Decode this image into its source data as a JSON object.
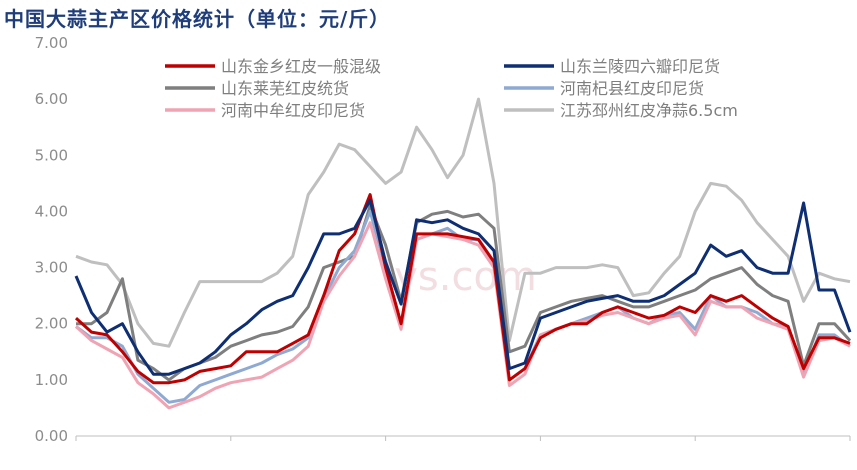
{
  "title": "中国大蒜主产区价格统计（单位：元/斤）",
  "chart_data": {
    "type": "line",
    "title": "中国大蒜主产区价格统计（单位：元/斤）",
    "ylim": [
      0,
      7
    ],
    "yticks": [
      "0.00",
      "1.00",
      "2.00",
      "3.00",
      "4.00",
      "5.00",
      "6.00",
      "7.00"
    ],
    "x": [
      0,
      1,
      2,
      3,
      4,
      5,
      6,
      7,
      8,
      9,
      10,
      11,
      12,
      13,
      14,
      15,
      16,
      17,
      18,
      19,
      20,
      21,
      22,
      23,
      24,
      25,
      26,
      27,
      28,
      29,
      30,
      31,
      32,
      33,
      34,
      35,
      36,
      37,
      38,
      39,
      40,
      41,
      42,
      43,
      44,
      45,
      46,
      47,
      48,
      49,
      50
    ],
    "xlim": [
      0,
      50
    ],
    "grid": false,
    "legend_position": "top",
    "series": [
      {
        "name": "山东金乡红皮一般混级",
        "color": "#c00000",
        "width": 3,
        "values": [
          2.1,
          1.85,
          1.8,
          1.5,
          1.15,
          0.95,
          0.95,
          1.0,
          1.15,
          1.2,
          1.25,
          1.5,
          1.5,
          1.5,
          1.65,
          1.8,
          2.5,
          3.3,
          3.6,
          4.3,
          3.0,
          2.0,
          3.6,
          3.6,
          3.6,
          3.55,
          3.5,
          3.1,
          1.0,
          1.2,
          1.75,
          1.9,
          2.0,
          2.0,
          2.2,
          2.3,
          2.2,
          2.1,
          2.15,
          2.3,
          2.2,
          2.5,
          2.4,
          2.5,
          2.3,
          2.1,
          1.95,
          1.2,
          1.75,
          1.75,
          1.65
        ]
      },
      {
        "name": "山东兰陵四六瓣印尼货",
        "color": "#0e2f73",
        "width": 3,
        "values": [
          2.85,
          2.2,
          1.85,
          2.0,
          1.5,
          1.1,
          1.1,
          1.2,
          1.3,
          1.5,
          1.8,
          2.0,
          2.25,
          2.4,
          2.5,
          3.0,
          3.6,
          3.6,
          3.7,
          4.2,
          3.1,
          2.35,
          3.85,
          3.8,
          3.85,
          3.7,
          3.6,
          3.3,
          1.2,
          1.3,
          2.1,
          2.2,
          2.3,
          2.4,
          2.45,
          2.5,
          2.4,
          2.4,
          2.5,
          2.7,
          2.9,
          3.4,
          3.2,
          3.3,
          3.0,
          2.9,
          2.9,
          4.15,
          2.6,
          2.6,
          1.85
        ]
      },
      {
        "name": "山东莱芜红皮统货",
        "color": "#7f7f7f",
        "width": 3,
        "values": [
          2.0,
          2.0,
          2.2,
          2.8,
          1.35,
          1.2,
          1.0,
          1.2,
          1.3,
          1.4,
          1.6,
          1.7,
          1.8,
          1.85,
          1.95,
          2.3,
          3.0,
          3.1,
          3.2,
          4.1,
          3.4,
          2.4,
          3.8,
          3.95,
          4.0,
          3.9,
          3.95,
          3.7,
          1.5,
          1.6,
          2.2,
          2.3,
          2.4,
          2.45,
          2.5,
          2.4,
          2.3,
          2.3,
          2.4,
          2.5,
          2.6,
          2.8,
          2.9,
          3.0,
          2.7,
          2.5,
          2.4,
          1.25,
          2.0,
          2.0,
          1.7
        ]
      },
      {
        "name": "河南杞县红皮印尼货",
        "color": "#8eaad2",
        "width": 3,
        "values": [
          1.95,
          1.75,
          1.75,
          1.6,
          1.1,
          0.85,
          0.6,
          0.65,
          0.9,
          1.0,
          1.1,
          1.2,
          1.3,
          1.45,
          1.55,
          1.75,
          2.45,
          3.0,
          3.3,
          4.0,
          3.0,
          2.0,
          3.5,
          3.6,
          3.7,
          3.5,
          3.5,
          3.0,
          1.0,
          1.2,
          1.8,
          1.9,
          2.0,
          2.1,
          2.2,
          2.3,
          2.1,
          2.0,
          2.15,
          2.2,
          1.9,
          2.5,
          2.3,
          2.3,
          2.2,
          2.0,
          1.95,
          1.1,
          1.8,
          1.8,
          1.6
        ]
      },
      {
        "name": "河南中牟红皮印尼货",
        "color": "#f0a3b3",
        "width": 3,
        "values": [
          1.95,
          1.7,
          1.55,
          1.4,
          0.95,
          0.75,
          0.5,
          0.6,
          0.7,
          0.85,
          0.95,
          1.0,
          1.05,
          1.2,
          1.35,
          1.6,
          2.4,
          2.85,
          3.2,
          3.8,
          2.8,
          1.9,
          3.5,
          3.6,
          3.55,
          3.5,
          3.4,
          3.0,
          0.9,
          1.1,
          1.8,
          1.9,
          2.0,
          2.05,
          2.15,
          2.2,
          2.1,
          2.0,
          2.1,
          2.15,
          1.8,
          2.4,
          2.3,
          2.3,
          2.1,
          2.0,
          1.9,
          1.05,
          1.7,
          1.75,
          1.6
        ]
      },
      {
        "name": "江苏邳州红皮净蒜6.5cm",
        "color": "#bfbfbf",
        "width": 3,
        "values": [
          3.2,
          3.1,
          3.05,
          2.7,
          2.0,
          1.65,
          1.6,
          2.2,
          2.75,
          2.75,
          2.75,
          2.75,
          2.75,
          2.9,
          3.2,
          4.3,
          4.7,
          5.2,
          5.1,
          4.8,
          4.5,
          4.7,
          5.5,
          5.1,
          4.6,
          5.0,
          6.0,
          4.5,
          1.7,
          2.9,
          2.9,
          3.0,
          3.0,
          3.0,
          3.05,
          3.0,
          2.5,
          2.55,
          2.9,
          3.2,
          4.0,
          4.5,
          4.45,
          4.2,
          3.8,
          3.5,
          3.2,
          2.4,
          2.9,
          2.8,
          2.75
        ]
      }
    ],
    "watermark": "lys.com"
  }
}
